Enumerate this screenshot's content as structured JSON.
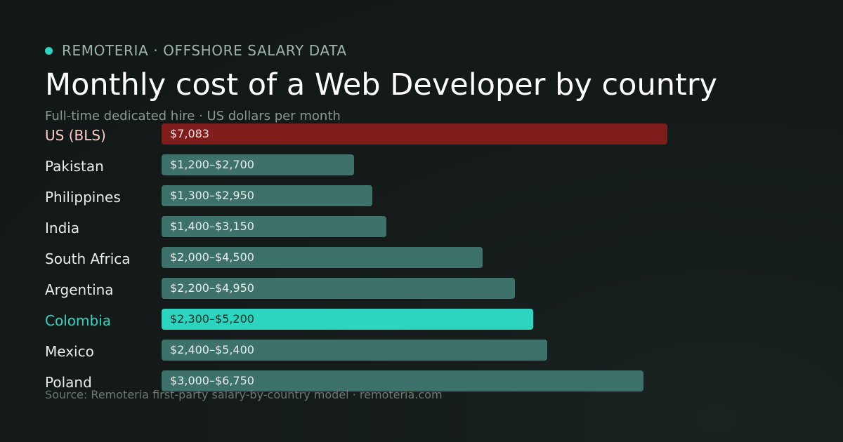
{
  "header": {
    "brand": "REMOTERIA · OFFSHORE SALARY DATA",
    "title": "Monthly cost of a Web Developer by country",
    "subtitle": "Full-time dedicated hire · US dollars per month"
  },
  "footer": {
    "source": "Source: Remoteria first-party salary-by-country model · remoteria.com"
  },
  "colors": {
    "default_bar": "#3f716b",
    "default_label": "#e8ecea",
    "default_value_text": "#e4ebe9",
    "baseline_bar": "#7f1d1d",
    "baseline_label": "#fecaca",
    "baseline_value_text": "#fde2e2",
    "highlight_bar": "#2dd4bf",
    "highlight_label": "#2dd4bf",
    "highlight_value_text": "#0f2a26",
    "accent_dot": "#2dd4bf"
  },
  "chart_data": {
    "type": "bar",
    "orientation": "horizontal",
    "title": "Monthly cost of a Web Developer by country",
    "subtitle": "Full-time dedicated hire · US dollars per month",
    "unit": "US dollars per month",
    "xlim": [
      0,
      7083
    ],
    "grid": false,
    "categories": [
      "US (BLS)",
      "Pakistan",
      "Philippines",
      "India",
      "South Africa",
      "Argentina",
      "Colombia",
      "Mexico",
      "Poland"
    ],
    "rows": [
      {
        "label": "US (BLS)",
        "min": null,
        "max": 7083,
        "value_label": "$7,083",
        "style": "baseline"
      },
      {
        "label": "Pakistan",
        "min": 1200,
        "max": 2700,
        "value_label": "$1,200–$2,700",
        "style": "default"
      },
      {
        "label": "Philippines",
        "min": 1300,
        "max": 2950,
        "value_label": "$1,300–$2,950",
        "style": "default"
      },
      {
        "label": "India",
        "min": 1400,
        "max": 3150,
        "value_label": "$1,400–$3,150",
        "style": "default"
      },
      {
        "label": "South Africa",
        "min": 2000,
        "max": 4500,
        "value_label": "$2,000–$4,500",
        "style": "default"
      },
      {
        "label": "Argentina",
        "min": 2200,
        "max": 4950,
        "value_label": "$2,200–$4,950",
        "style": "default"
      },
      {
        "label": "Colombia",
        "min": 2300,
        "max": 5200,
        "value_label": "$2,300–$5,200",
        "style": "highlight"
      },
      {
        "label": "Mexico",
        "min": 2400,
        "max": 5400,
        "value_label": "$2,400–$5,400",
        "style": "default"
      },
      {
        "label": "Poland",
        "min": 3000,
        "max": 6750,
        "value_label": "$3,000–$6,750",
        "style": "default"
      }
    ]
  }
}
